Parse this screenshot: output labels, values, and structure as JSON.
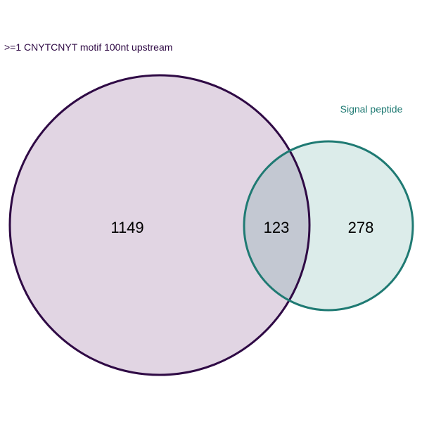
{
  "sets": [
    {
      "label": ">=1 CNYTCNYT motif 100nt upstream",
      "stroke": "#2f0a45",
      "fill": "#e1d5e3",
      "text_color": "#2f0a45"
    },
    {
      "label": "Signal peptide",
      "stroke": "#1f7a73",
      "fill": "#dcecea",
      "text_color": "#1f7a73"
    }
  ],
  "overlap_fill": "#c3c8d2",
  "regions": {
    "a_only": "1149",
    "intersection": "123",
    "b_only": "278"
  }
}
